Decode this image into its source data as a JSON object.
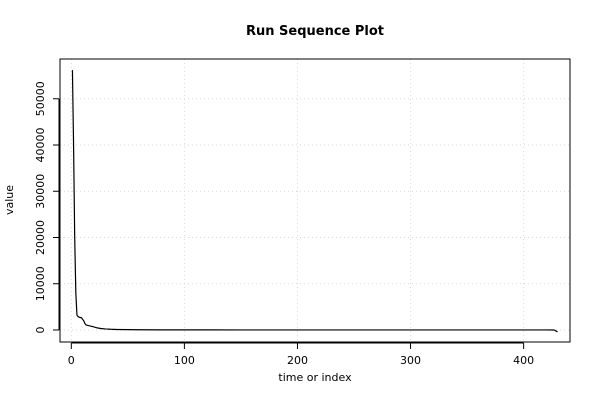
{
  "chart_data": {
    "type": "line",
    "title": "Run Sequence Plot",
    "xlabel": "time or index",
    "ylabel": "value",
    "xlim": [
      -10,
      441
    ],
    "ylim": [
      -2600,
      58600
    ],
    "x_ticks": [
      0,
      100,
      200,
      300,
      400
    ],
    "y_ticks": [
      0,
      10000,
      20000,
      30000,
      40000,
      50000
    ],
    "grid": true,
    "line_color": "#000000",
    "grid_color": "#d9d9d9",
    "series": [
      {
        "x": [
          1,
          2,
          3,
          4,
          5,
          6,
          7,
          8,
          9,
          10,
          11,
          12,
          13,
          15,
          17,
          20,
          23,
          26,
          30,
          35,
          40,
          50,
          60,
          80,
          100,
          120,
          150,
          200,
          250,
          300,
          350,
          400,
          420,
          427,
          430
        ],
        "y": [
          56200,
          40000,
          20000,
          8000,
          3200,
          2900,
          2750,
          2700,
          2650,
          2300,
          2000,
          1400,
          1100,
          950,
          850,
          650,
          450,
          320,
          220,
          150,
          110,
          70,
          50,
          30,
          20,
          15,
          10,
          8,
          6,
          5,
          4,
          3,
          3,
          0,
          -400
        ]
      }
    ]
  }
}
